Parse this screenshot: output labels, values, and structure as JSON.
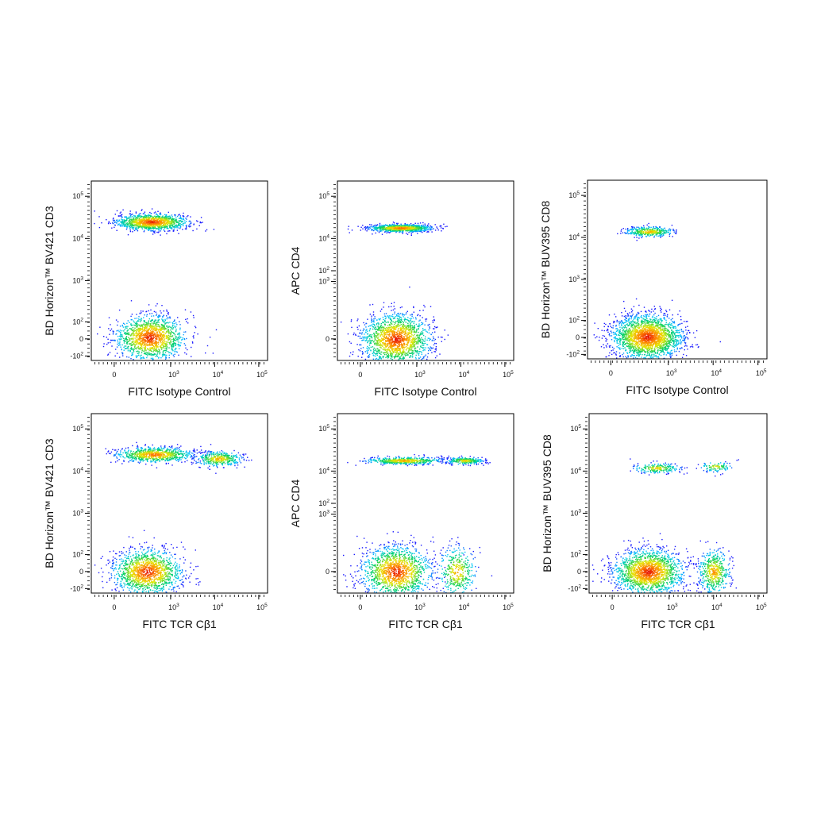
{
  "figure": {
    "panel_count": 6
  },
  "chart_data": [
    {
      "type": "scatter",
      "xlabel": "FITC Isotype Control",
      "ylabel": "BD Horizon™ BV421 CD3",
      "x_ticks": [
        "0",
        "10^3",
        "10^4",
        "10^5"
      ],
      "y_ticks": [
        "-10^2",
        "0",
        "10^2",
        "10^3",
        "10^4",
        "10^5"
      ],
      "density_colormap": [
        "#1a1aff",
        "#00c8ff",
        "#00d060",
        "#e8e800",
        "#ff8000",
        "#e00000"
      ],
      "populations": [
        {
          "name": "",
          "x_center": 250,
          "y_center": 25000,
          "x_spread": 0.23,
          "y_spread": 0.13,
          "weight": 0.45
        },
        {
          "name": "",
          "x_center": 220,
          "y_center": 10,
          "x_spread": 0.22,
          "y_spread": 0.35,
          "weight": 0.55
        }
      ]
    },
    {
      "type": "scatter",
      "xlabel": "FITC Isotype Control",
      "ylabel": "APC CD4",
      "x_ticks": [
        "0",
        "10^3",
        "10^4",
        "10^5"
      ],
      "y_ticks": [
        "0",
        "10^2",
        "10^3",
        "10^4",
        "10^5"
      ],
      "density_colormap": [
        "#1a1aff",
        "#00c8ff",
        "#00d060",
        "#e8e800",
        "#ff8000",
        "#e00000"
      ],
      "populations": [
        {
          "name": "",
          "x_center": 300,
          "y_center": 18000,
          "x_spread": 0.2,
          "y_spread": 0.06,
          "weight": 0.35
        },
        {
          "name": "",
          "x_center": 220,
          "y_center": 0,
          "x_spread": 0.22,
          "y_spread": 0.4,
          "weight": 0.65
        }
      ]
    },
    {
      "type": "scatter",
      "xlabel": "FITC Isotype Control",
      "ylabel": "BD Horizon™ BUV395 CD8",
      "x_ticks": [
        "0",
        "10^3",
        "10^4",
        "10^5"
      ],
      "y_ticks": [
        "-10^2",
        "0",
        "10^2",
        "10^3",
        "10^4",
        "10^5"
      ],
      "density_colormap": [
        "#1a1aff",
        "#00c8ff",
        "#00d060",
        "#e8e800",
        "#ff8000",
        "#e00000"
      ],
      "populations": [
        {
          "name": "",
          "x_center": 250,
          "y_center": 14000,
          "x_spread": 0.15,
          "y_spread": 0.08,
          "weight": 0.15
        },
        {
          "name": "",
          "x_center": 220,
          "y_center": 5,
          "x_spread": 0.22,
          "y_spread": 0.35,
          "weight": 0.85
        }
      ]
    },
    {
      "type": "scatter",
      "xlabel": "FITC TCR Cβ1",
      "ylabel": "BD Horizon™ BV421 CD3",
      "x_ticks": [
        "0",
        "10^3",
        "10^4",
        "10^5"
      ],
      "y_ticks": [
        "-10^2",
        "0",
        "10^2",
        "10^3",
        "10^4",
        "10^5"
      ],
      "density_colormap": [
        "#1a1aff",
        "#00c8ff",
        "#00d060",
        "#e8e800",
        "#ff8000",
        "#e00000"
      ],
      "populations": [
        {
          "name": "",
          "x_center": 300,
          "y_center": 25000,
          "x_spread": 0.25,
          "y_spread": 0.12,
          "weight": 0.3
        },
        {
          "name": "",
          "x_center": 12000,
          "y_center": 20000,
          "x_spread": 0.15,
          "y_spread": 0.12,
          "weight": 0.15
        },
        {
          "name": "",
          "x_center": 180,
          "y_center": 0,
          "x_spread": 0.22,
          "y_spread": 0.35,
          "weight": 0.55
        }
      ]
    },
    {
      "type": "scatter",
      "xlabel": "FITC TCR Cβ1",
      "ylabel": "APC CD4",
      "x_ticks": [
        "0",
        "10^3",
        "10^4",
        "10^5"
      ],
      "y_ticks": [
        "0",
        "10^2",
        "10^3",
        "10^4",
        "10^5"
      ],
      "density_colormap": [
        "#1a1aff",
        "#00c8ff",
        "#00d060",
        "#e8e800",
        "#ff8000",
        "#e00000"
      ],
      "populations": [
        {
          "name": "",
          "x_center": 400,
          "y_center": 18000,
          "x_spread": 0.25,
          "y_spread": 0.06,
          "weight": 0.2
        },
        {
          "name": "",
          "x_center": 12000,
          "y_center": 18000,
          "x_spread": 0.12,
          "y_spread": 0.06,
          "weight": 0.1
        },
        {
          "name": "",
          "x_center": 220,
          "y_center": 0,
          "x_spread": 0.22,
          "y_spread": 0.4,
          "weight": 0.55
        },
        {
          "name": "",
          "x_center": 8000,
          "y_center": 0,
          "x_spread": 0.12,
          "y_spread": 0.4,
          "weight": 0.15
        }
      ]
    },
    {
      "type": "scatter",
      "xlabel": "FITC TCR Cβ1",
      "ylabel": "BD Horizon™ BUV395 CD8",
      "x_ticks": [
        "0",
        "10^3",
        "10^4",
        "10^5"
      ],
      "y_ticks": [
        "-10^2",
        "0",
        "10^2",
        "10^3",
        "10^4",
        "10^5"
      ],
      "density_colormap": [
        "#1a1aff",
        "#00c8ff",
        "#00d060",
        "#e8e800",
        "#ff8000",
        "#e00000"
      ],
      "populations": [
        {
          "name": "",
          "x_center": 400,
          "y_center": 12000,
          "x_spread": 0.15,
          "y_spread": 0.08,
          "weight": 0.08
        },
        {
          "name": "",
          "x_center": 11000,
          "y_center": 13000,
          "x_spread": 0.1,
          "y_spread": 0.08,
          "weight": 0.04
        },
        {
          "name": "",
          "x_center": 220,
          "y_center": 0,
          "x_spread": 0.22,
          "y_spread": 0.35,
          "weight": 0.68
        },
        {
          "name": "",
          "x_center": 10000,
          "y_center": 0,
          "x_spread": 0.1,
          "y_spread": 0.35,
          "weight": 0.2
        }
      ]
    }
  ]
}
